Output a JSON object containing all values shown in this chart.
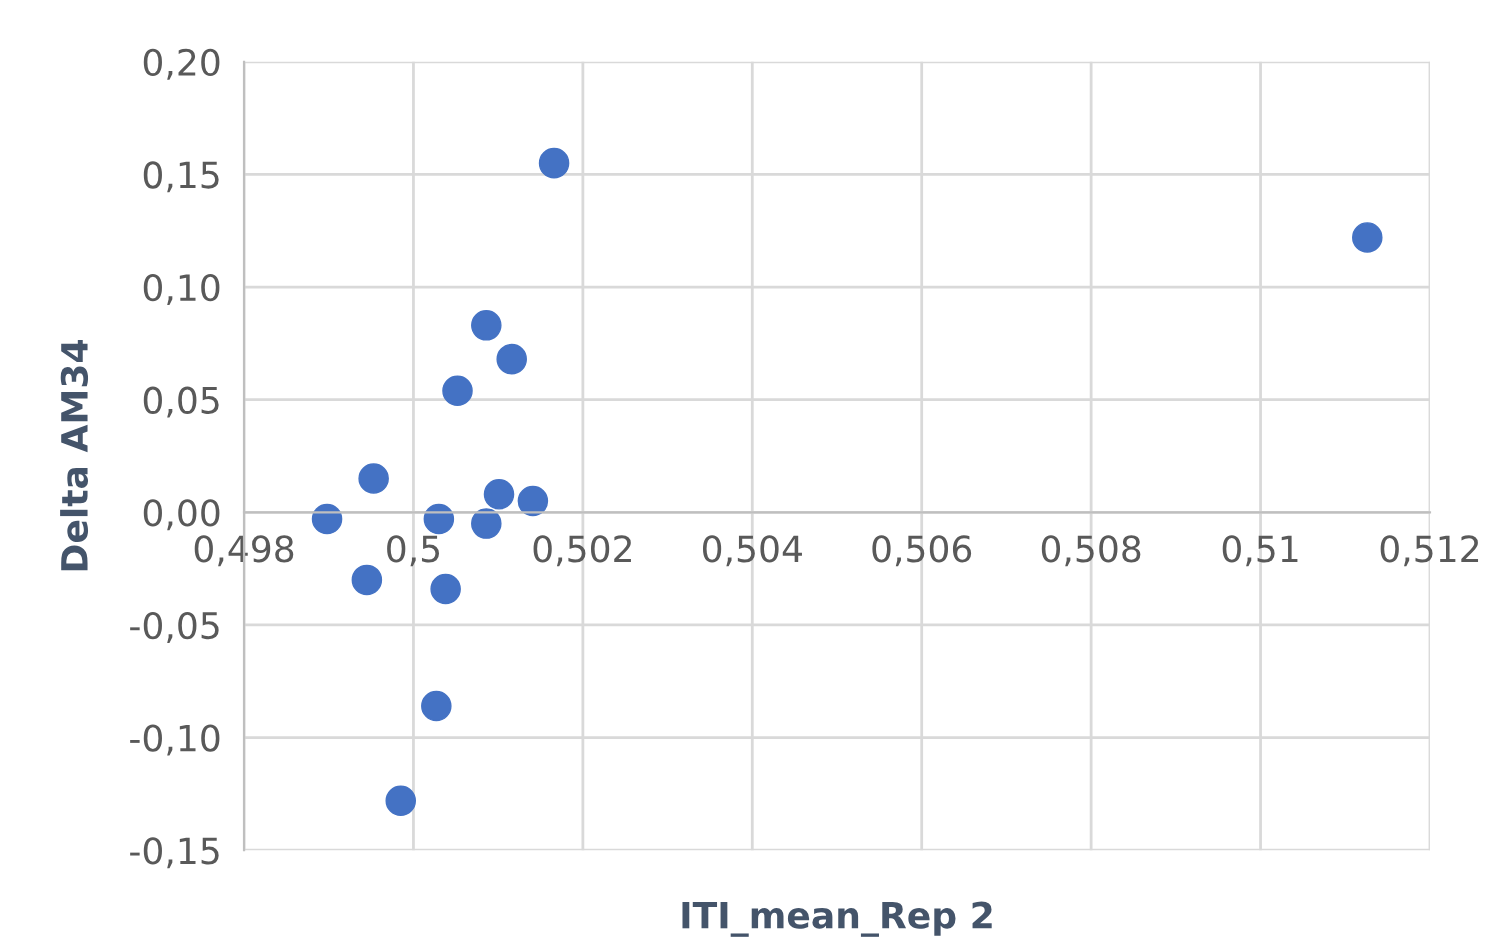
{
  "chart_data": {
    "type": "scatter",
    "xlabel": "ITI_mean_Rep 2",
    "ylabel": "Delta AM34",
    "x": [
      0.49898,
      0.49953,
      0.49945,
      0.49985,
      0.50027,
      0.5003,
      0.50038,
      0.50052,
      0.50086,
      0.50086,
      0.50101,
      0.50116,
      0.50141,
      0.50166,
      0.51126
    ],
    "series": [
      {
        "color": "#4472c4",
        "values": [
          -0.003,
          0.015,
          -0.03,
          -0.128,
          -0.086,
          -0.003,
          -0.034,
          0.054,
          0.083,
          -0.005,
          0.008,
          0.068,
          0.005,
          0.155,
          0.122
        ]
      }
    ],
    "xlim": [
      0.498,
      0.512
    ],
    "xticks": [
      {
        "value": 0.498,
        "label": "0,498"
      },
      {
        "value": 0.5,
        "label": "0,5"
      },
      {
        "value": 0.502,
        "label": "0,502"
      },
      {
        "value": 0.504,
        "label": "0,504"
      },
      {
        "value": 0.506,
        "label": "0,506"
      },
      {
        "value": 0.508,
        "label": "0,508"
      },
      {
        "value": 0.51,
        "label": "0,51"
      },
      {
        "value": 0.512,
        "label": "0,512"
      }
    ],
    "ylim": [
      -0.15,
      0.2
    ],
    "yticks": [
      {
        "value": -0.15,
        "label": "-0,15"
      },
      {
        "value": -0.1,
        "label": "-0,10"
      },
      {
        "value": -0.05,
        "label": "-0,05"
      },
      {
        "value": 0,
        "label": "0,00"
      },
      {
        "value": 0.05,
        "label": "0,05"
      },
      {
        "value": 0.1,
        "label": "0,10"
      },
      {
        "value": 0.15,
        "label": "0,15"
      },
      {
        "value": 0.2,
        "label": "0,20"
      }
    ],
    "grid": true,
    "marker": "circle"
  }
}
